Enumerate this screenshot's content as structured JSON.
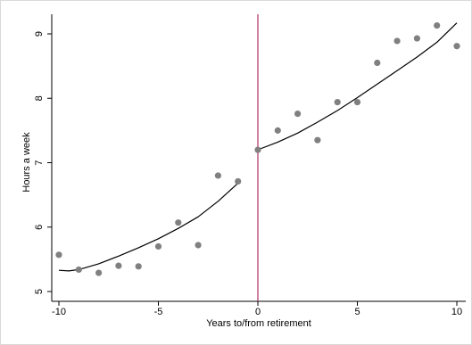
{
  "chart_data": {
    "type": "scatter",
    "xlabel": "Years to/from retirement",
    "ylabel": "Hours a week",
    "xlim": [
      -10,
      10
    ],
    "ylim": [
      5,
      9
    ],
    "xticks": [
      -10,
      -5,
      0,
      5,
      10
    ],
    "yticks": [
      5,
      6,
      7,
      8,
      9
    ],
    "xtick_labels": [
      "-10",
      "-5",
      "0",
      "5",
      "10"
    ],
    "ytick_labels": [
      "5",
      "6",
      "7",
      "8",
      "9"
    ],
    "grid": false,
    "legend": "none",
    "reference_line": {
      "x": 0,
      "color": "#b0306a"
    },
    "colors": {
      "points": "#808080",
      "fit": "#000000",
      "axis": "#000000"
    },
    "series": [
      {
        "kind": "points",
        "x": [
          -10,
          -9,
          -8,
          -7,
          -6,
          -5,
          -4,
          -3,
          -2,
          -1,
          0,
          1,
          2,
          3,
          4,
          5,
          6,
          7,
          8,
          9,
          10
        ],
        "y": [
          5.57,
          5.34,
          5.29,
          5.4,
          5.39,
          5.7,
          6.07,
          5.72,
          6.8,
          6.71,
          7.2,
          7.5,
          7.76,
          7.35,
          7.94,
          7.94,
          8.55,
          8.89,
          8.93,
          9.13,
          8.81
        ]
      },
      {
        "kind": "fit",
        "x": [
          -10,
          -9.5,
          -9,
          -8,
          -7,
          -6,
          -5,
          -4,
          -3,
          -2,
          -1
        ],
        "y": [
          5.33,
          5.32,
          5.34,
          5.43,
          5.55,
          5.68,
          5.82,
          5.98,
          6.16,
          6.4,
          6.68
        ]
      },
      {
        "kind": "fit",
        "x": [
          0,
          1,
          2,
          3,
          4,
          5,
          6,
          7,
          8,
          9,
          10
        ],
        "y": [
          7.2,
          7.32,
          7.46,
          7.63,
          7.81,
          8.01,
          8.22,
          8.43,
          8.64,
          8.87,
          9.17
        ]
      }
    ]
  }
}
